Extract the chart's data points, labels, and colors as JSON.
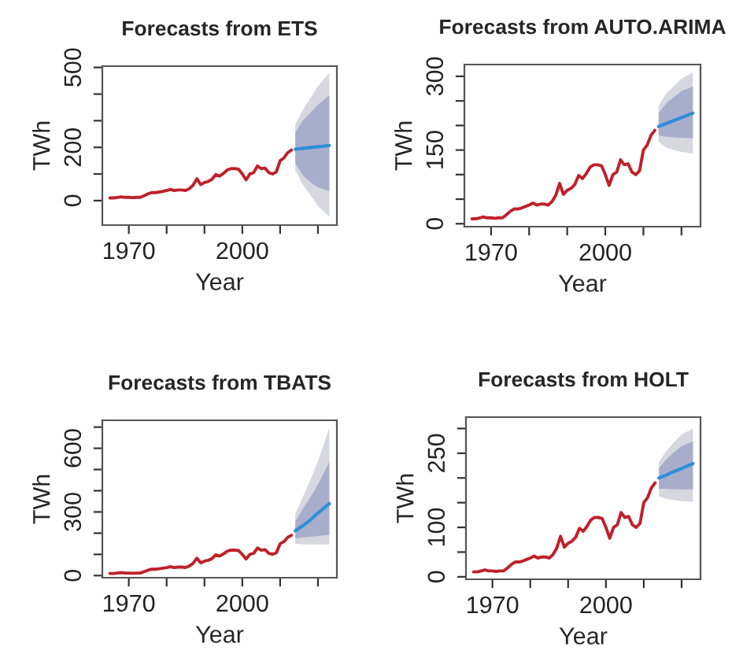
{
  "chart_data": [
    {
      "type": "line",
      "title": "Forecasts from ETS",
      "xlabel": "Year",
      "ylabel": "TWh",
      "xlim": [
        1963,
        2025
      ],
      "xticks": [
        1970,
        {
          "value": 1980,
          "label": null
        },
        {
          "value": 1990,
          "label": null
        },
        2000,
        {
          "value": 2010,
          "label": null
        },
        {
          "value": 2020,
          "label": null
        }
      ],
      "ylim": [
        -92,
        505
      ],
      "yticks": [
        0,
        {
          "value": 100,
          "label": null
        },
        200,
        {
          "value": 300,
          "label": null
        },
        {
          "value": 400,
          "label": null
        },
        500
      ],
      "grid": false,
      "legend": false,
      "series": [
        {
          "color": "#c0202a",
          "x": [
            1965,
            1966,
            1967,
            1968,
            1969,
            1970,
            1971,
            1972,
            1973,
            1974,
            1975,
            1976,
            1977,
            1978,
            1979,
            1980,
            1981,
            1982,
            1983,
            1984,
            1985,
            1986,
            1987,
            1988,
            1989,
            1990,
            1991,
            1992,
            1993,
            1994,
            1995,
            1996,
            1997,
            1998,
            1999,
            2000,
            2001,
            2002,
            2003,
            2004,
            2005,
            2006,
            2007,
            2008,
            2009,
            2010,
            2011,
            2012,
            2013
          ],
          "values": [
            10,
            10,
            12,
            14,
            12,
            12,
            11,
            12,
            12,
            18,
            25,
            30,
            30,
            32,
            35,
            38,
            42,
            38,
            40,
            40,
            38,
            45,
            58,
            82,
            60,
            68,
            72,
            80,
            98,
            92,
            102,
            115,
            120,
            120,
            118,
            100,
            78,
            100,
            105,
            130,
            120,
            122,
            105,
            100,
            108,
            150,
            160,
            180,
            190
          ]
        },
        {
          "color": "#2f8fd8",
          "x": [
            2014,
            2016,
            2018,
            2020,
            2023
          ],
          "values": [
            193,
            196,
            199,
            202,
            207
          ],
          "lower": [
            115,
            60,
            20,
            -20,
            -60
          ],
          "upper": [
            285,
            340,
            385,
            430,
            480
          ]
        },
        {
          "color": "#2f8fd8",
          "x": [
            2014,
            2016,
            2018,
            2020,
            2023
          ],
          "values": [
            193,
            196,
            199,
            202,
            207
          ],
          "lower": [
            140,
            95,
            70,
            50,
            35
          ],
          "upper": [
            255,
            300,
            330,
            360,
            395
          ]
        }
      ]
    },
    {
      "type": "line",
      "title": "Forecasts from AUTO.ARIMA",
      "xlabel": "Year",
      "ylabel": "TWh",
      "xlim": [
        1963,
        2025
      ],
      "xticks": [
        1970,
        {
          "value": 1980,
          "label": null
        },
        {
          "value": 1990,
          "label": null
        },
        2000,
        {
          "value": 2010,
          "label": null
        },
        {
          "value": 2020,
          "label": null
        }
      ],
      "ylim": [
        -6,
        324
      ],
      "yticks": [
        0,
        {
          "value": 50,
          "label": null
        },
        {
          "value": 100,
          "label": null
        },
        150,
        {
          "value": 200,
          "label": null
        },
        {
          "value": 250,
          "label": null
        },
        300
      ],
      "grid": false,
      "legend": false,
      "series": [
        {
          "color": "#c0202a",
          "x": [
            1965,
            1966,
            1967,
            1968,
            1969,
            1970,
            1971,
            1972,
            1973,
            1974,
            1975,
            1976,
            1977,
            1978,
            1979,
            1980,
            1981,
            1982,
            1983,
            1984,
            1985,
            1986,
            1987,
            1988,
            1989,
            1990,
            1991,
            1992,
            1993,
            1994,
            1995,
            1996,
            1997,
            1998,
            1999,
            2000,
            2001,
            2002,
            2003,
            2004,
            2005,
            2006,
            2007,
            2008,
            2009,
            2010,
            2011,
            2012,
            2013
          ],
          "values": [
            10,
            10,
            12,
            14,
            12,
            12,
            11,
            12,
            12,
            18,
            25,
            30,
            30,
            32,
            35,
            38,
            42,
            38,
            40,
            40,
            38,
            45,
            58,
            82,
            60,
            68,
            72,
            80,
            98,
            92,
            102,
            115,
            120,
            120,
            118,
            100,
            78,
            100,
            105,
            130,
            120,
            122,
            105,
            100,
            108,
            150,
            160,
            180,
            190
          ]
        },
        {
          "color": "#2f8fd8",
          "x": [
            2014,
            2016,
            2018,
            2020,
            2023
          ],
          "values": [
            198,
            204,
            210,
            216,
            225
          ],
          "lower": [
            167,
            155,
            150,
            146,
            143
          ],
          "upper": [
            240,
            265,
            280,
            295,
            308
          ]
        },
        {
          "color": "#2f8fd8",
          "x": [
            2014,
            2016,
            2018,
            2020,
            2023
          ],
          "values": [
            198,
            204,
            210,
            216,
            225
          ],
          "lower": [
            180,
            177,
            176,
            175,
            174
          ],
          "upper": [
            225,
            245,
            258,
            270,
            279
          ]
        }
      ]
    },
    {
      "type": "line",
      "title": "Forecasts from TBATS",
      "xlabel": "Year",
      "ylabel": "TWh",
      "xlim": [
        1963,
        2025
      ],
      "xticks": [
        1970,
        {
          "value": 1980,
          "label": null
        },
        {
          "value": 1990,
          "label": null
        },
        2000,
        {
          "value": 2010,
          "label": null
        },
        {
          "value": 2020,
          "label": null
        }
      ],
      "ylim": [
        -10,
        732
      ],
      "yticks": [
        0,
        {
          "value": 100,
          "label": null
        },
        {
          "value": 200,
          "label": null
        },
        300,
        {
          "value": 400,
          "label": null
        },
        {
          "value": 500,
          "label": null
        },
        600,
        {
          "value": 700,
          "label": null
        }
      ],
      "grid": false,
      "legend": false,
      "series": [
        {
          "color": "#c0202a",
          "x": [
            1965,
            1966,
            1967,
            1968,
            1969,
            1970,
            1971,
            1972,
            1973,
            1974,
            1975,
            1976,
            1977,
            1978,
            1979,
            1980,
            1981,
            1982,
            1983,
            1984,
            1985,
            1986,
            1987,
            1988,
            1989,
            1990,
            1991,
            1992,
            1993,
            1994,
            1995,
            1996,
            1997,
            1998,
            1999,
            2000,
            2001,
            2002,
            2003,
            2004,
            2005,
            2006,
            2007,
            2008,
            2009,
            2010,
            2011,
            2012,
            2013
          ],
          "values": [
            10,
            10,
            12,
            14,
            12,
            12,
            11,
            12,
            12,
            18,
            25,
            30,
            30,
            32,
            35,
            38,
            42,
            38,
            40,
            40,
            38,
            45,
            58,
            82,
            60,
            68,
            72,
            80,
            98,
            92,
            102,
            115,
            120,
            120,
            118,
            100,
            78,
            100,
            105,
            130,
            120,
            122,
            105,
            100,
            108,
            150,
            160,
            180,
            190
          ]
        },
        {
          "color": "#2f8fd8",
          "x": [
            2014,
            2016,
            2018,
            2020,
            2023
          ],
          "values": [
            211,
            235,
            262,
            295,
            339
          ],
          "lower": [
            150,
            148,
            147,
            147,
            147
          ],
          "upper": [
            290,
            370,
            450,
            540,
            695
          ]
        },
        {
          "color": "#2f8fd8",
          "x": [
            2014,
            2016,
            2018,
            2020,
            2023
          ],
          "values": [
            211,
            235,
            262,
            295,
            339
          ],
          "lower": [
            175,
            180,
            183,
            187,
            192
          ],
          "upper": [
            255,
            315,
            370,
            430,
            535
          ]
        }
      ]
    },
    {
      "type": "line",
      "title": "Forecasts from HOLT",
      "xlabel": "Year",
      "ylabel": "TWh",
      "xlim": [
        1963,
        2025
      ],
      "xticks": [
        1970,
        {
          "value": 1980,
          "label": null
        },
        {
          "value": 1990,
          "label": null
        },
        2000,
        {
          "value": 2010,
          "label": null
        },
        {
          "value": 2020,
          "label": null
        }
      ],
      "ylim": [
        -5,
        323
      ],
      "yticks": [
        0,
        {
          "value": 50,
          "label": null
        },
        100,
        {
          "value": 150,
          "label": null
        },
        {
          "value": 200,
          "label": null
        },
        250,
        {
          "value": 300,
          "label": null
        }
      ],
      "grid": false,
      "legend": false,
      "series": [
        {
          "color": "#c0202a",
          "x": [
            1965,
            1966,
            1967,
            1968,
            1969,
            1970,
            1971,
            1972,
            1973,
            1974,
            1975,
            1976,
            1977,
            1978,
            1979,
            1980,
            1981,
            1982,
            1983,
            1984,
            1985,
            1986,
            1987,
            1988,
            1989,
            1990,
            1991,
            1992,
            1993,
            1994,
            1995,
            1996,
            1997,
            1998,
            1999,
            2000,
            2001,
            2002,
            2003,
            2004,
            2005,
            2006,
            2007,
            2008,
            2009,
            2010,
            2011,
            2012,
            2013
          ],
          "values": [
            10,
            10,
            12,
            14,
            12,
            12,
            11,
            12,
            12,
            18,
            25,
            30,
            30,
            32,
            35,
            38,
            42,
            38,
            40,
            40,
            38,
            45,
            58,
            82,
            60,
            68,
            72,
            80,
            98,
            92,
            102,
            115,
            120,
            120,
            118,
            100,
            78,
            100,
            105,
            130,
            120,
            122,
            105,
            100,
            108,
            150,
            160,
            180,
            190
          ]
        },
        {
          "color": "#2f8fd8",
          "x": [
            2014,
            2016,
            2018,
            2020,
            2023
          ],
          "values": [
            200,
            206,
            213,
            219,
            229
          ],
          "lower": [
            163,
            158,
            155,
            153,
            152
          ],
          "upper": [
            232,
            255,
            272,
            288,
            300
          ]
        },
        {
          "color": "#2f8fd8",
          "x": [
            2014,
            2016,
            2018,
            2020,
            2023
          ],
          "values": [
            200,
            206,
            213,
            219,
            229
          ],
          "lower": [
            178,
            178,
            177,
            177,
            177
          ],
          "upper": [
            220,
            238,
            252,
            264,
            274
          ]
        }
      ]
    }
  ]
}
